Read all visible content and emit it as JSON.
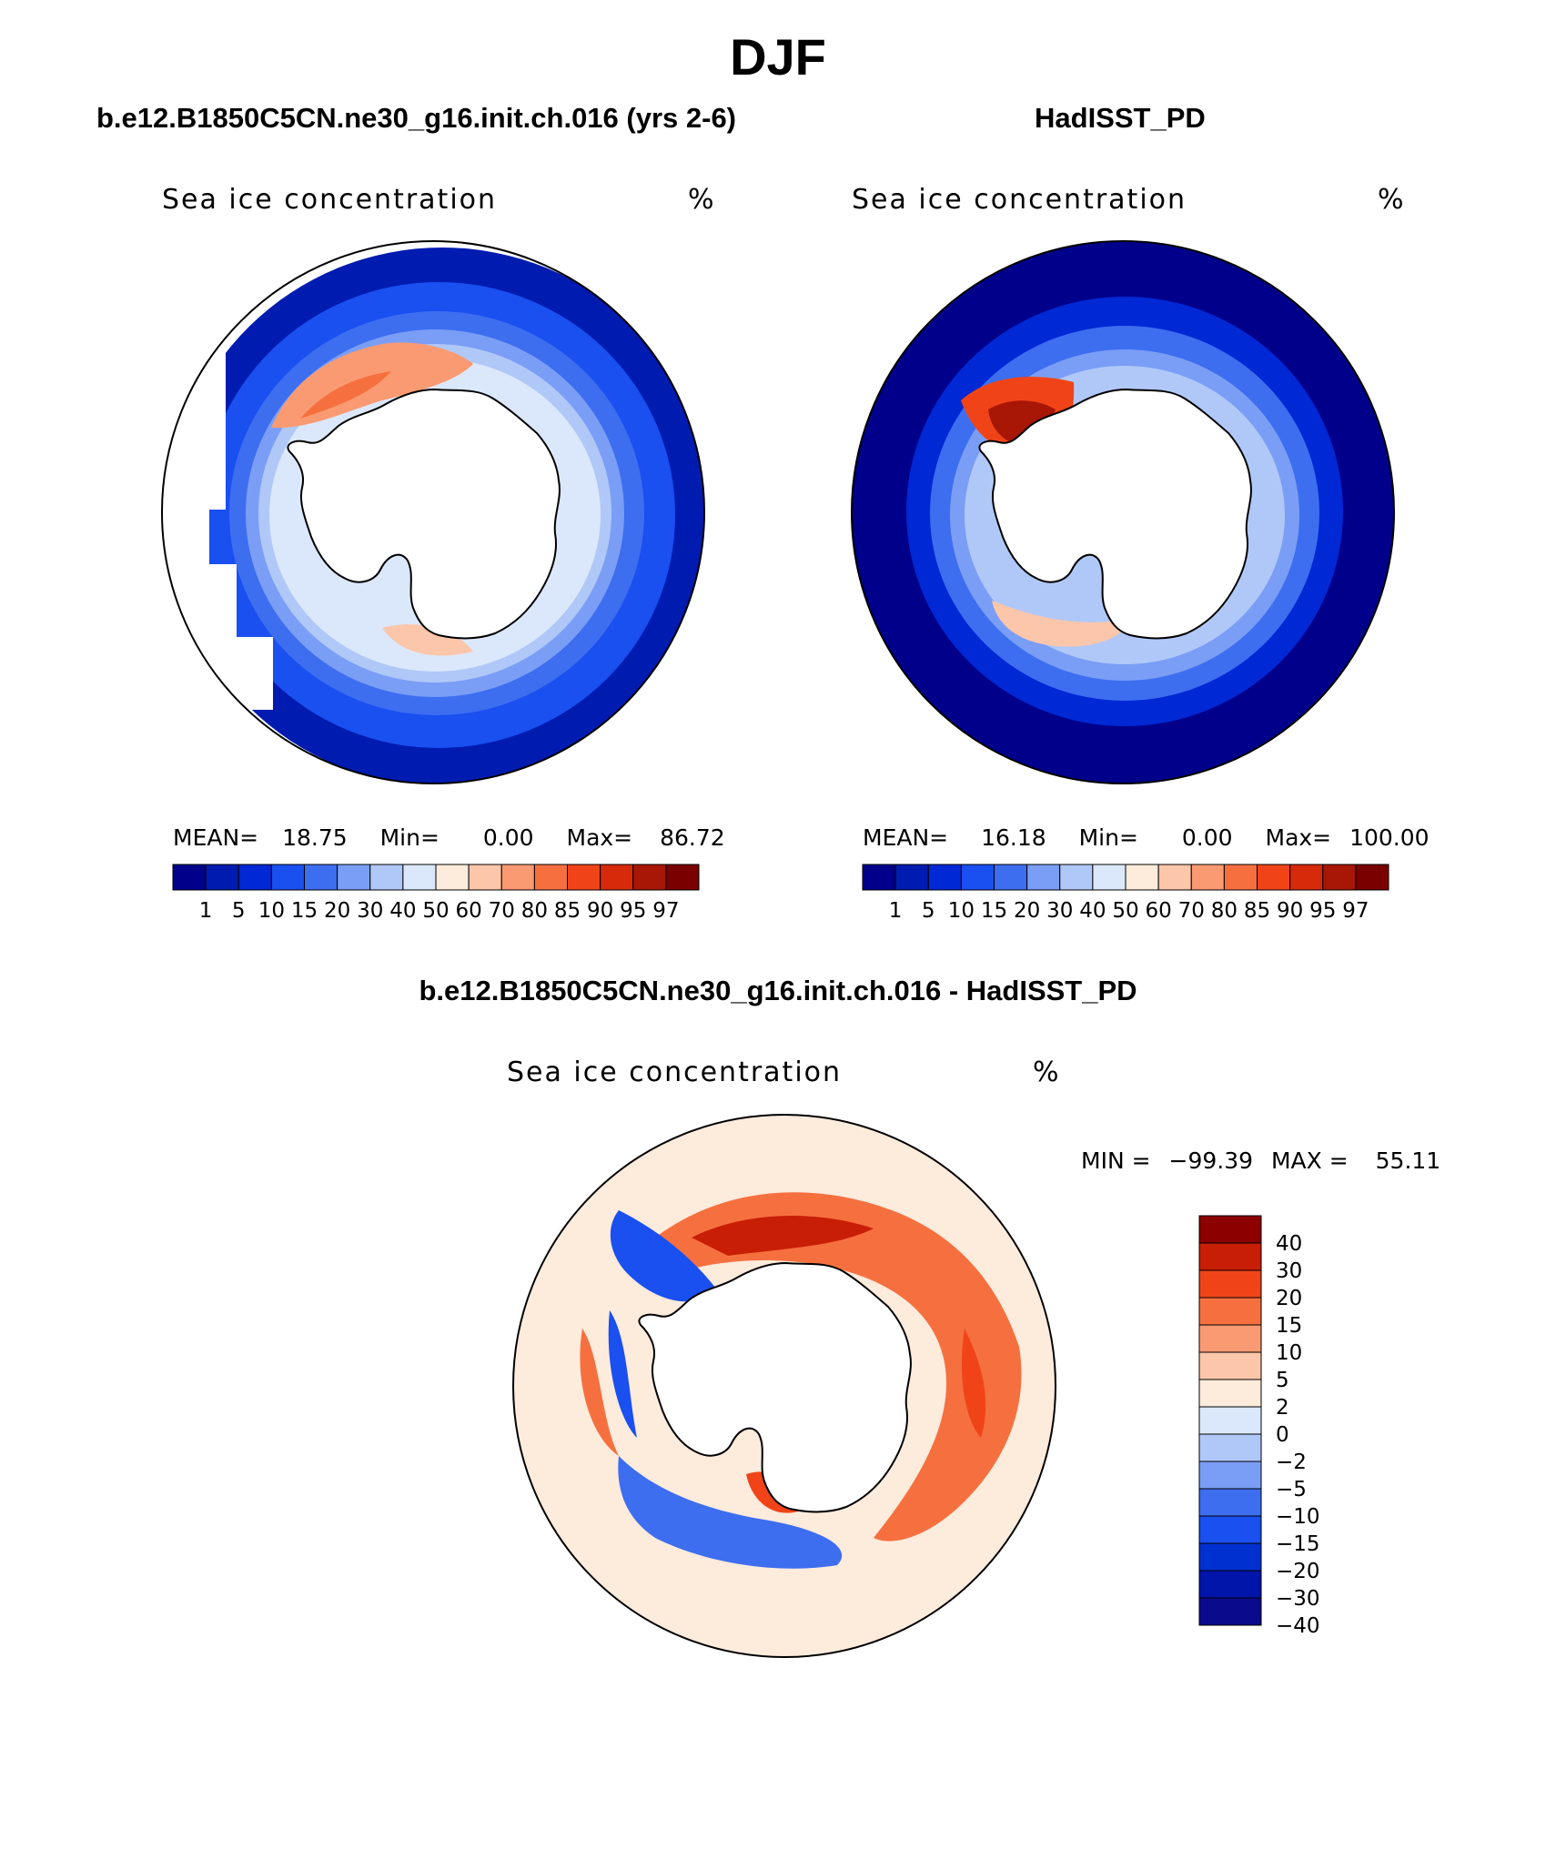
{
  "figure_title": "DJF",
  "colors": {
    "ice_levels": [
      "#00008b",
      "#001cb0",
      "#0028d4",
      "#1a4ff0",
      "#3d6ef0",
      "#7a9ef5",
      "#b0c8f8",
      "#dbe8fc",
      "#fdebdc",
      "#fcc6aa",
      "#fa9a72",
      "#f6703f",
      "#f04418",
      "#d62a0a",
      "#a81606",
      "#7a0000"
    ],
    "diff_levels": [
      "#0a0a8c",
      "#0015aa",
      "#0030d0",
      "#1a4ff0",
      "#3d6ef0",
      "#7a9ef5",
      "#b0c8f8",
      "#dbe8fc",
      "#fdebdc",
      "#fcc6aa",
      "#fa9a72",
      "#f6703f",
      "#f04418",
      "#c81e06",
      "#8c0000"
    ],
    "land": "#ffffff",
    "coast": "#000000"
  },
  "panels": {
    "model": {
      "title": "b.e12.B1850C5CN.ne30_g16.init.ch.016 (yrs 2-6)",
      "variable": "Sea ice concentration",
      "units": "%",
      "mean_label": "MEAN=",
      "mean": "18.75",
      "min_label": "Min=",
      "min": "0.00",
      "max_label": "Max=",
      "max": "86.72"
    },
    "obs": {
      "title": "HadISST_PD",
      "variable": "Sea ice concentration",
      "units": "%",
      "mean_label": "MEAN=",
      "mean": "16.18",
      "min_label": "Min=",
      "min": "0.00",
      "max_label": "Max=",
      "max": "100.00"
    },
    "diff": {
      "title": "b.e12.B1850C5CN.ne30_g16.init.ch.016 - HadISST_PD",
      "variable": "Sea ice concentration",
      "units": "%",
      "min_label": "MIN =",
      "min": "−99.39",
      "max_label": "MAX =",
      "max": "55.11"
    }
  },
  "ice_colorbar_labels": [
    "1",
    "5",
    "10",
    "15",
    "20",
    "30",
    "40",
    "50",
    "60",
    "70",
    "80",
    "85",
    "90",
    "95",
    "97"
  ],
  "diff_colorbar_labels": [
    "40",
    "30",
    "20",
    "15",
    "10",
    "5",
    "2",
    "0",
    "−2",
    "−5",
    "−10",
    "−15",
    "−20",
    "−30",
    "−40"
  ]
}
